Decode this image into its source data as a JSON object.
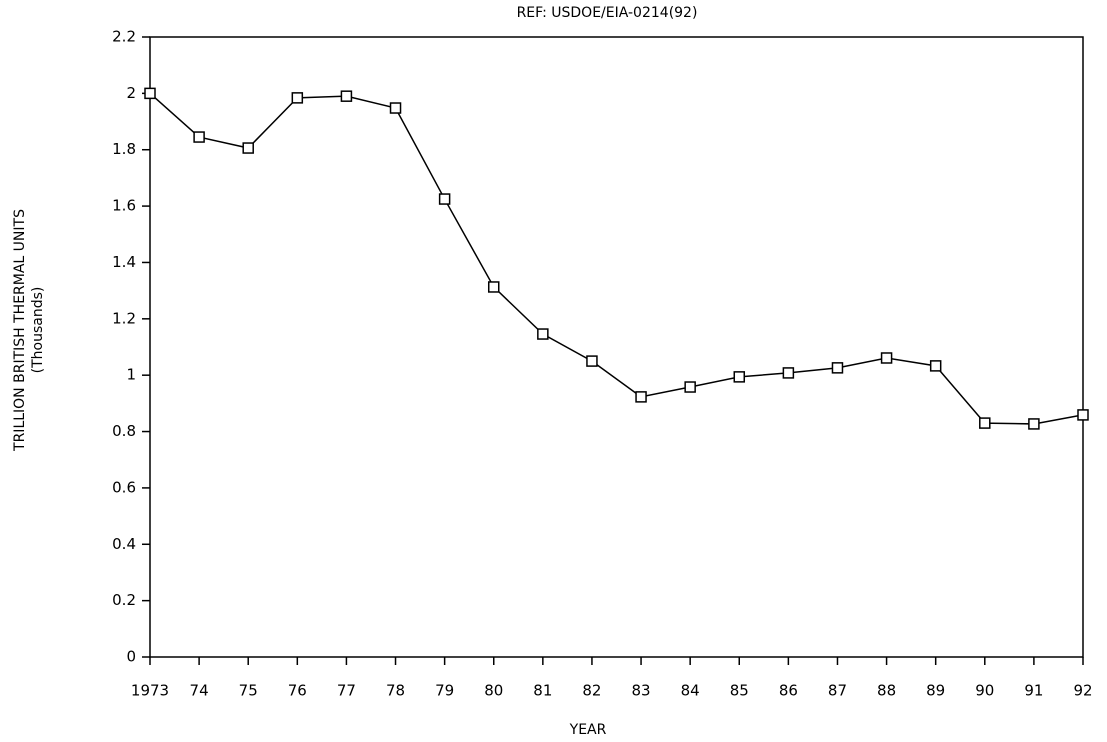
{
  "chart_data": {
    "type": "line",
    "subtitle": "REF: USDOE/EIA-0214(92)",
    "ylabel": [
      "TRILLION BRITISH THERMAL UNITS",
      "(Thousands)"
    ],
    "xlabel": "YEAR",
    "categories": [
      "1973",
      "74",
      "75",
      "76",
      "77",
      "78",
      "79",
      "80",
      "81",
      "82",
      "83",
      "84",
      "85",
      "86",
      "87",
      "88",
      "89",
      "90",
      "91",
      "92"
    ],
    "series": [
      {
        "color": "#000000",
        "values": [
          2.0,
          1.845,
          1.806,
          1.984,
          1.99,
          1.948,
          1.625,
          1.313,
          1.146,
          1.05,
          0.923,
          0.958,
          0.994,
          1.008,
          1.026,
          1.061,
          1.033,
          0.83,
          0.827,
          0.859
        ]
      }
    ],
    "ylim": [
      0,
      2.2
    ],
    "yticks": [
      0,
      0.2,
      0.4,
      0.6,
      0.8,
      1,
      1.2,
      1.4,
      1.6,
      1.8,
      2,
      2.2
    ],
    "marker": "square"
  }
}
